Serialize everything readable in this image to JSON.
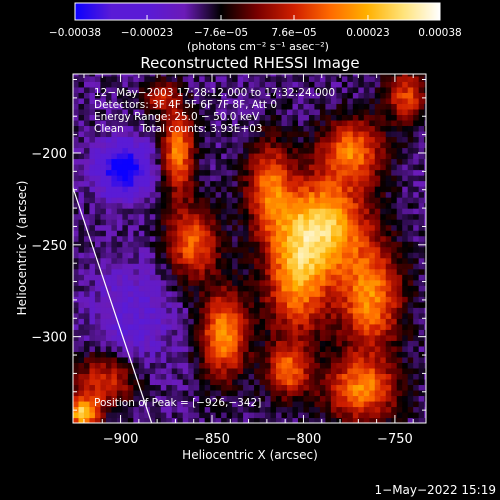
{
  "colors": {
    "background": "#000000",
    "foreground": "#ffffff",
    "colormap": [
      "#0b00ff",
      "#5a1bd6",
      "#5a1bd6",
      "#6b1bb8",
      "#000000",
      "#7a0000",
      "#d01f00",
      "#ff6a00",
      "#ffb000",
      "#ffe37a",
      "#ffffff"
    ]
  },
  "chart_data": {
    "type": "heatmap",
    "title": "Reconstructed RHESSI Image",
    "xlabel": "Heliocentric X (arcsec)",
    "ylabel": "Heliocentric Y (arcsec)",
    "xlim": [
      -926,
      -733
    ],
    "ylim": [
      -347,
      -157
    ],
    "x_ticks": [
      -900,
      -850,
      -800,
      -750
    ],
    "y_ticks": [
      -200,
      -250,
      -300
    ],
    "x_tick_labels": [
      "−900",
      "−850",
      "−800",
      "−750"
    ],
    "y_tick_labels": [
      "−200",
      "−250",
      "−300"
    ],
    "colorbar": {
      "min": -0.00038,
      "max": 0.00038,
      "ticks": [
        -0.00038,
        -0.00023,
        -7.6e-05,
        7.6e-05,
        0.00023,
        0.00038
      ],
      "tick_labels": [
        "−0.00038",
        "−0.00023",
        "−7.6e−05",
        "7.6e−05",
        "0.00023",
        "0.00038"
      ],
      "label": "(photons cm⁻² s⁻¹ asec⁻²)"
    },
    "annotations": [
      "12−May−2003 17:28:12.000 to 17:32:24.000",
      "Detectors: 3F 4F 5F 6F 7F 8F, Att 0",
      "Energy Range: 25.0 − 50.0 keV",
      "Clean     Total counts: 3.93E+03"
    ],
    "peak_label": "Position of Peak = [−926,−342]",
    "peak": [
      -926,
      -342
    ],
    "limb_line": {
      "x": [
        -926,
        -883
      ],
      "y": [
        -219,
        -347
      ]
    },
    "grid": false,
    "intensity_blobs": [
      {
        "x": -870,
        "y": -200,
        "sx": 6,
        "sy": 16,
        "amp": 0.0003
      },
      {
        "x": -862,
        "y": -250,
        "sx": 10,
        "sy": 14,
        "amp": 0.00026
      },
      {
        "x": -845,
        "y": -300,
        "sx": 9,
        "sy": 16,
        "amp": 0.00032
      },
      {
        "x": -820,
        "y": -220,
        "sx": 9,
        "sy": 18,
        "amp": 0.00025
      },
      {
        "x": -805,
        "y": -270,
        "sx": 12,
        "sy": 22,
        "amp": 0.0003
      },
      {
        "x": -790,
        "y": -240,
        "sx": 16,
        "sy": 18,
        "amp": 0.00036
      },
      {
        "x": -775,
        "y": -200,
        "sx": 12,
        "sy": 12,
        "amp": 0.00028
      },
      {
        "x": -765,
        "y": -280,
        "sx": 12,
        "sy": 20,
        "amp": 0.0003
      },
      {
        "x": -770,
        "y": -330,
        "sx": 14,
        "sy": 12,
        "amp": 0.00029
      },
      {
        "x": -810,
        "y": -320,
        "sx": 8,
        "sy": 10,
        "amp": 0.00025
      },
      {
        "x": -910,
        "y": -325,
        "sx": 12,
        "sy": 10,
        "amp": 0.00022
      },
      {
        "x": -922,
        "y": -343,
        "sx": 6,
        "sy": 6,
        "amp": 0.00038
      },
      {
        "x": -880,
        "y": -170,
        "sx": 6,
        "sy": 6,
        "amp": 0.0002
      },
      {
        "x": -745,
        "y": -170,
        "sx": 8,
        "sy": 10,
        "amp": 0.00022
      },
      {
        "x": -900,
        "y": -210,
        "sx": 10,
        "sy": 10,
        "amp": -0.0003
      },
      {
        "x": -895,
        "y": -290,
        "sx": 16,
        "sy": 20,
        "amp": -0.0001
      }
    ]
  },
  "footer": {
    "timestamp": "1−May−2022 15:19"
  }
}
